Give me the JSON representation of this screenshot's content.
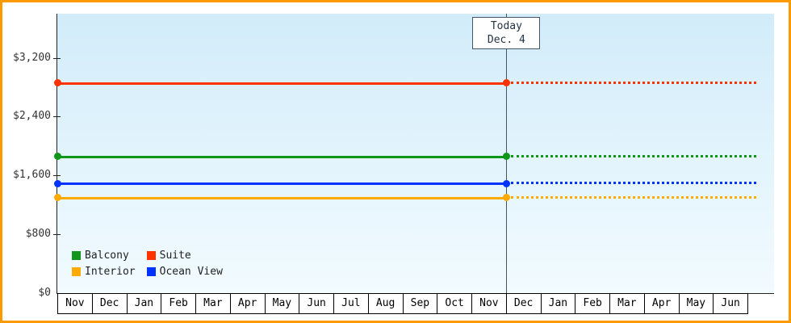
{
  "chart_data": {
    "type": "line",
    "title": "",
    "x_categories": [
      "Nov",
      "Dec",
      "Jan",
      "Feb",
      "Mar",
      "Apr",
      "May",
      "Jun",
      "Jul",
      "Aug",
      "Sep",
      "Oct",
      "Nov",
      "Dec",
      "Jan",
      "Feb",
      "Mar",
      "Apr",
      "May",
      "Jun"
    ],
    "y_ticks": [
      {
        "label": "$3,200",
        "value": 3200
      },
      {
        "label": "$2,400",
        "value": 2400
      },
      {
        "label": "$1,600",
        "value": 1600
      },
      {
        "label": "$800",
        "value": 800
      },
      {
        "label": "$0",
        "value": 0
      }
    ],
    "ylim": [
      0,
      3800
    ],
    "grid": false,
    "legend_position": "bottom-left",
    "today": {
      "line1": "Today",
      "line2": "Dec. 4",
      "month_index": 13
    },
    "series": [
      {
        "name": "Balcony",
        "color": "#109618",
        "value": 1860
      },
      {
        "name": "Suite",
        "color": "#ff3300",
        "value": 2860
      },
      {
        "name": "Interior",
        "color": "#ffaa00",
        "value": 1300
      },
      {
        "name": "Ocean View",
        "color": "#0033ff",
        "value": 1490
      }
    ]
  },
  "colors": {
    "frame_border": "#ff9900",
    "plot_gradient_top": "#d2ecfa",
    "plot_gradient_bottom": "#f2fbff",
    "axis": "#222222",
    "today_line": "#445566",
    "text": "#333333",
    "month_text": "#000000"
  }
}
